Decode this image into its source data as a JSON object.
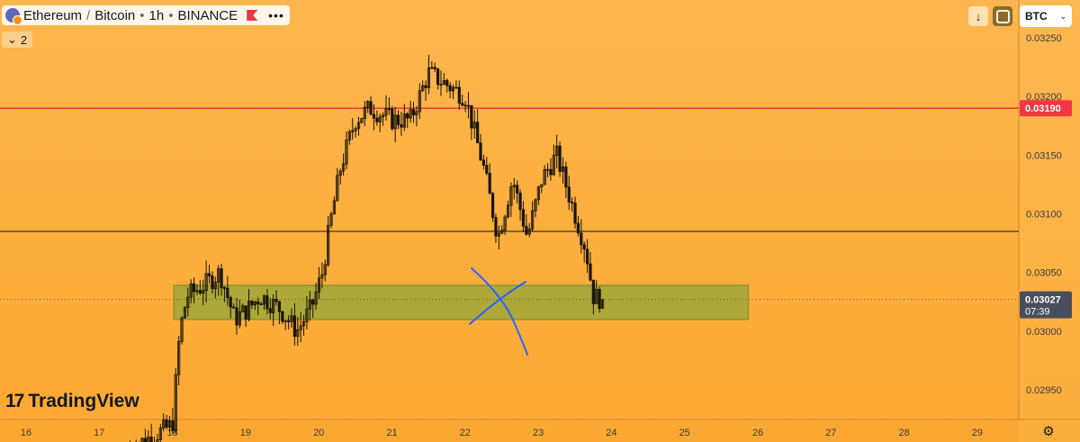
{
  "header": {
    "base": "Ethereum",
    "separator": "/",
    "quote": "Bitcoin",
    "interval": "1h",
    "dot": "•",
    "exchange": "BINANCE",
    "legend_count": "2",
    "currency": "BTC"
  },
  "branding": {
    "logo_text": "TradingView"
  },
  "price_labels": {
    "resistance": "0.03190",
    "current": "0.03027",
    "countdown": "07:39"
  },
  "colors": {
    "background": "#fdb040",
    "up_candle": "#000000",
    "down_candle": "#000000",
    "resistance_line": "#f23645",
    "current_label_bg": "#4a4e5c",
    "zone_fill": "#9fa73a",
    "annotation": "#2962ff"
  },
  "icons": [
    "symbol-icon",
    "flag-icon",
    "more-icon",
    "chevron-down-icon",
    "arrow-down-icon",
    "box-icon",
    "gear-icon",
    "tradingview-logo-icon"
  ],
  "chart_data": {
    "type": "candlestick",
    "ylim": [
      0.02925,
      0.0327
    ],
    "y_ticks": [
      "0.03250",
      "0.03200",
      "0.03150",
      "0.03100",
      "0.03050",
      "0.03000",
      "0.02950"
    ],
    "x_ticks": [
      "16",
      "17",
      "18",
      "19",
      "20",
      "21",
      "22",
      "23",
      "24",
      "25",
      "26",
      "27",
      "28",
      "29"
    ],
    "x_unit": "day",
    "series_keyframes": [
      [
        17.42,
        0.029
      ],
      [
        18.0,
        0.0292
      ],
      [
        18.1,
        0.03
      ],
      [
        18.2,
        0.0303
      ],
      [
        18.45,
        0.0304
      ],
      [
        18.65,
        0.0305
      ],
      [
        18.85,
        0.0301
      ],
      [
        19.05,
        0.0302
      ],
      [
        19.2,
        0.0303
      ],
      [
        19.45,
        0.0302
      ],
      [
        19.7,
        0.03
      ],
      [
        19.9,
        0.0302
      ],
      [
        20.05,
        0.0305
      ],
      [
        20.15,
        0.0309
      ],
      [
        20.3,
        0.0314
      ],
      [
        20.5,
        0.0318
      ],
      [
        20.7,
        0.0319
      ],
      [
        21.0,
        0.0318
      ],
      [
        21.25,
        0.0318
      ],
      [
        21.5,
        0.0322
      ],
      [
        21.75,
        0.0321
      ],
      [
        22.0,
        0.032
      ],
      [
        22.25,
        0.0314
      ],
      [
        22.45,
        0.0308
      ],
      [
        22.65,
        0.0313
      ],
      [
        22.85,
        0.0308
      ],
      [
        23.05,
        0.0313
      ],
      [
        23.25,
        0.0315
      ],
      [
        23.45,
        0.0311
      ],
      [
        23.65,
        0.0307
      ],
      [
        23.75,
        0.0303
      ],
      [
        23.88,
        0.03027
      ]
    ],
    "horizontal_lines": [
      {
        "price": 0.0319,
        "color": "#f23645",
        "label": "0.03190"
      },
      {
        "price": 0.03085,
        "color": "#131722"
      }
    ],
    "current_price": 0.03027,
    "zone": {
      "x_start": 18.02,
      "x_end": 25.87,
      "top": 0.03039,
      "bottom": 0.0301
    }
  }
}
